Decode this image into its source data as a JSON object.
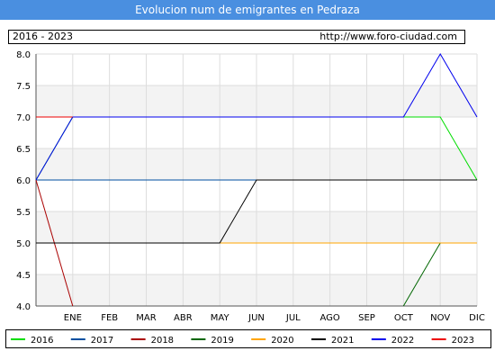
{
  "header": {
    "title": "Evolucion num de emigrantes en Pedraza"
  },
  "info": {
    "period": "2016 - 2023",
    "url": "http://www.foro-ciudad.com"
  },
  "chart_data": {
    "type": "line",
    "title": "Evolucion num de emigrantes en Pedraza",
    "categories": [
      "ENE",
      "FEB",
      "MAR",
      "ABR",
      "MAY",
      "JUN",
      "JUL",
      "AGO",
      "SEP",
      "OCT",
      "NOV",
      "DIC"
    ],
    "x_start_value": 6.0,
    "ylim": [
      4.0,
      8.0
    ],
    "yticks": [
      "4.0",
      "4.5",
      "5.0",
      "5.5",
      "6.0",
      "6.5",
      "7.0",
      "7.5",
      "8.0"
    ],
    "grid": true,
    "legend_position": "bottom",
    "series": [
      {
        "name": "2016",
        "color": "#00dd00",
        "start": 6,
        "values": [
          7,
          7,
          7,
          7,
          7,
          7,
          7,
          7,
          7,
          7,
          7,
          6
        ]
      },
      {
        "name": "2017",
        "color": "#004fa0",
        "start": 6,
        "values": [
          6,
          6,
          6,
          6,
          6,
          6,
          6,
          6,
          6,
          6,
          6,
          6
        ]
      },
      {
        "name": "2018",
        "color": "#aa0000",
        "start": 6,
        "values": [
          4,
          null,
          null,
          null,
          null,
          null,
          null,
          null,
          null,
          null,
          null,
          null
        ]
      },
      {
        "name": "2019",
        "color": "#006600",
        "start": null,
        "values": [
          null,
          null,
          null,
          null,
          null,
          null,
          null,
          null,
          null,
          4,
          5,
          5
        ]
      },
      {
        "name": "2020",
        "color": "#ffa500",
        "start": null,
        "values": [
          null,
          null,
          null,
          null,
          5,
          5,
          5,
          5,
          5,
          5,
          5,
          5
        ]
      },
      {
        "name": "2021",
        "color": "#000000",
        "start": 5,
        "values": [
          5,
          5,
          5,
          5,
          5,
          6,
          6,
          6,
          6,
          6,
          6,
          6
        ]
      },
      {
        "name": "2022",
        "color": "#0000ee",
        "start": 6,
        "values": [
          7,
          7,
          7,
          7,
          7,
          7,
          7,
          7,
          7,
          7,
          8,
          7
        ]
      },
      {
        "name": "2023",
        "color": "#ee0000",
        "start": 7,
        "values": [
          7,
          null,
          null,
          null,
          null,
          null,
          null,
          null,
          null,
          null,
          null,
          null
        ]
      }
    ]
  }
}
